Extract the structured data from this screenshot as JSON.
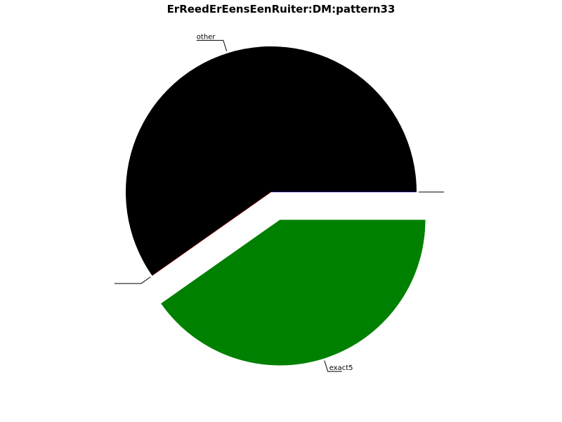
{
  "chart_data": {
    "type": "pie",
    "title": "ErReedErEensEenRuiter:DM:pattern33",
    "categories": [
      "other",
      "",
      "exact5",
      ""
    ],
    "values": [
      0.5975,
      0.0,
      0.4025,
      0.0
    ],
    "colors": [
      "#000000",
      "#ff0000",
      "#008000",
      "#0000ff"
    ],
    "explode": [
      0,
      0,
      1,
      0
    ],
    "start_angle_deg": 0,
    "direction": "counterclockwise",
    "legend": "none"
  }
}
